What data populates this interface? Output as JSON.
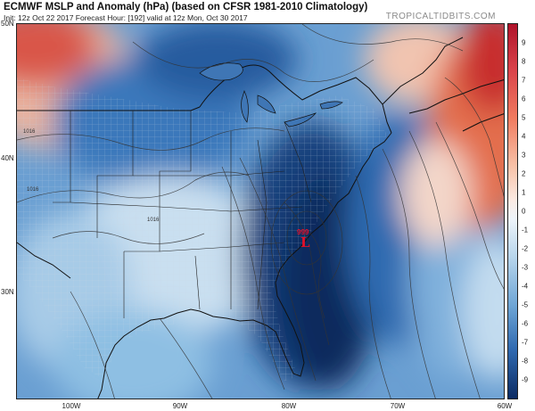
{
  "header": {
    "title": "ECMWF MSLP and Anomaly (hPa) (based on CFSR 1981-2010 Climatology)",
    "subtitle": "Init: 12z Oct 22 2017   Forecast Hour: [192]   valid at 12z Mon, Oct 30 2017",
    "brand": "TROPICALTIDBITS.COM"
  },
  "axes": {
    "lat_labels": [
      "50N",
      "40N",
      "30N"
    ],
    "lon_labels": [
      "100W",
      "90W",
      "80W",
      "70W",
      "60W"
    ]
  },
  "colorbar": {
    "labels": [
      "9",
      "8",
      "7",
      "6",
      "5",
      "4",
      "3",
      "2",
      "1",
      "0",
      "-1",
      "-2",
      "-3",
      "-4",
      "-5",
      "-6",
      "-7",
      "-8",
      "-9"
    ]
  },
  "low": {
    "value": "999",
    "marker": "L"
  },
  "isobar_labels": [
    "1016",
    "1016",
    "1016"
  ],
  "colors": {
    "deep_negative": "#0a2a5e",
    "negative": "#2f6db5",
    "weak_negative": "#a9cde8",
    "weak_positive": "#f6d2c2",
    "positive": "#e2644a",
    "strong_positive": "#c0222b",
    "low_marker": "#e0102a"
  }
}
